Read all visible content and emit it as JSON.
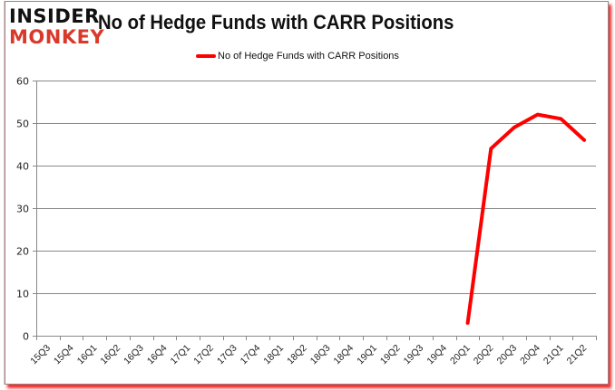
{
  "logo": {
    "line1": "INSIDER",
    "line2": "MONKEY"
  },
  "title": "No of Hedge Funds with CARR Positions",
  "legend": {
    "label": "No of Hedge Funds with CARR Positions",
    "color": "#ff0000"
  },
  "colors": {
    "line": "#ff0000",
    "grid": "#888888",
    "axis": "#888888",
    "shadow": "#ff0000",
    "logo_black": "#111111",
    "logo_red": "#d9392b"
  },
  "chart_data": {
    "type": "line",
    "title": "No of Hedge Funds with CARR Positions",
    "xlabel": "",
    "ylabel": "",
    "ylim": [
      0,
      60
    ],
    "yticks": [
      0,
      10,
      20,
      30,
      40,
      50,
      60
    ],
    "grid": true,
    "legend_position": "top",
    "categories": [
      "15Q3",
      "15Q4",
      "16Q1",
      "16Q2",
      "16Q3",
      "16Q4",
      "17Q1",
      "17Q2",
      "17Q3",
      "17Q4",
      "18Q1",
      "18Q2",
      "18Q3",
      "18Q4",
      "19Q1",
      "19Q2",
      "19Q3",
      "19Q4",
      "20Q1",
      "20Q2",
      "20Q3",
      "20Q4",
      "21Q1",
      "21Q2"
    ],
    "series": [
      {
        "name": "No of Hedge Funds with CARR Positions",
        "color": "#ff0000",
        "values": [
          null,
          null,
          null,
          null,
          null,
          null,
          null,
          null,
          null,
          null,
          null,
          null,
          null,
          null,
          null,
          null,
          null,
          null,
          3,
          44,
          49,
          52,
          51,
          46
        ]
      }
    ]
  }
}
